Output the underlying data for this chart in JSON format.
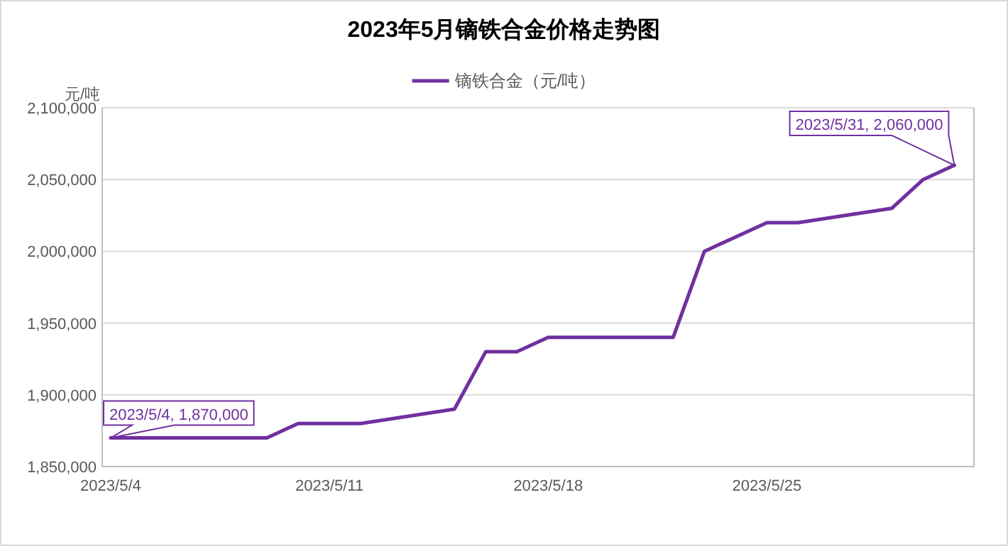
{
  "chart_data": {
    "type": "line",
    "title": "2023年5月镝铁合金价格走势图",
    "ylabel": "元/吨",
    "x": [
      "2023-05-04",
      "2023-05-05",
      "2023-05-06",
      "2023-05-07",
      "2023-05-08",
      "2023-05-09",
      "2023-05-10",
      "2023-05-11",
      "2023-05-12",
      "2023-05-15",
      "2023-05-16",
      "2023-05-17",
      "2023-05-18",
      "2023-05-19",
      "2023-05-22",
      "2023-05-23",
      "2023-05-24",
      "2023-05-25",
      "2023-05-26",
      "2023-05-29",
      "2023-05-30",
      "2023-05-31"
    ],
    "series": [
      {
        "name": "镝铁合金（元/吨）",
        "color": "#7030a0",
        "values": [
          1870000,
          1870000,
          1870000,
          1870000,
          1870000,
          1870000,
          1880000,
          1880000,
          1880000,
          1890000,
          1930000,
          1930000,
          1940000,
          1940000,
          1940000,
          2000000,
          2010000,
          2020000,
          2020000,
          2030000,
          2050000,
          2060000
        ]
      }
    ],
    "xlim": [
      "2023-05-03T17:30",
      "2023-05-31T15:00"
    ],
    "xticks": [
      {
        "value": "2023-05-04",
        "label": "2023/5/4"
      },
      {
        "value": "2023-05-11",
        "label": "2023/5/11"
      },
      {
        "value": "2023-05-18",
        "label": "2023/5/18"
      },
      {
        "value": "2023-05-25",
        "label": "2023/5/25"
      }
    ],
    "ylim": [
      1850000,
      2100000
    ],
    "yticks": [
      {
        "value": 1850000,
        "label": "1,850,000"
      },
      {
        "value": 1900000,
        "label": "1,900,000"
      },
      {
        "value": 1950000,
        "label": "1,950,000"
      },
      {
        "value": 2000000,
        "label": "2,000,000"
      },
      {
        "value": 2050000,
        "label": "2,050,000"
      },
      {
        "value": 2100000,
        "label": "2,100,000"
      }
    ],
    "grid": "y",
    "legend": "top",
    "marker": "none",
    "line_style": "solid",
    "annotations": [
      {
        "text": "2023/5/4, 1,870,000",
        "x": "2023-05-04",
        "y": 1870000
      },
      {
        "text": "2023/5/31, 2,060,000",
        "x": "2023-05-31",
        "y": 2060000
      }
    ]
  }
}
